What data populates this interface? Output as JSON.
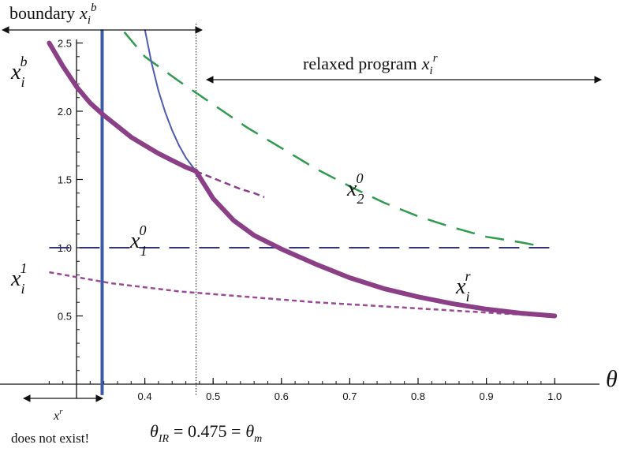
{
  "chart_data": {
    "type": "line",
    "xlabel": "θ",
    "x_ticks": [
      "0.4",
      "0.5",
      "0.6",
      "0.7",
      "0.8",
      "0.9",
      "1.0"
    ],
    "y_ticks": [
      "0.5",
      "1.0",
      "1.5",
      "2.0",
      "2.5"
    ],
    "xlim": [
      0.26,
      1.02
    ],
    "ylim": [
      0,
      2.6
    ],
    "grid": false,
    "colors": {
      "x_b_and_x_r": "#8b3f86",
      "x_1_1": "#9a4a95",
      "x_1_0": "#2e2f8f",
      "x_2_0": "#2e9a4e",
      "steep_blue": "#4d5bb0",
      "vertical_blue": "#3a5ba8"
    },
    "series": [
      {
        "label_parts": {
          "base": "x",
          "sub": "i",
          "sup": "b"
        },
        "style": "thick solid",
        "x": [
          0.26,
          0.28,
          0.3,
          0.32,
          0.34,
          0.36,
          0.38,
          0.4,
          0.42,
          0.44,
          0.46,
          0.475
        ],
        "y": [
          2.5,
          2.33,
          2.18,
          2.06,
          1.97,
          1.89,
          1.81,
          1.75,
          1.69,
          1.64,
          1.59,
          1.56
        ]
      },
      {
        "style": "thin dashed continuation",
        "x": [
          0.475,
          0.5,
          0.52,
          0.54,
          0.56,
          0.575
        ],
        "y": [
          1.56,
          1.51,
          1.47,
          1.43,
          1.4,
          1.37
        ]
      },
      {
        "label_parts": {
          "base": "x",
          "sub": "i",
          "sup": "r"
        },
        "style": "thick solid",
        "x": [
          0.475,
          0.5,
          0.53,
          0.56,
          0.6,
          0.65,
          0.7,
          0.75,
          0.8,
          0.85,
          0.9,
          0.95,
          1.0
        ],
        "y": [
          1.56,
          1.36,
          1.2,
          1.09,
          0.99,
          0.88,
          0.78,
          0.7,
          0.64,
          0.59,
          0.55,
          0.52,
          0.5
        ]
      },
      {
        "label_parts": {
          "base": "x",
          "sub": "i",
          "sup": "1"
        },
        "style": "short dashed",
        "x": [
          0.26,
          0.35,
          0.45,
          0.55,
          0.65,
          0.75,
          0.85,
          0.95,
          1.0
        ],
        "y": [
          0.82,
          0.74,
          0.68,
          0.64,
          0.6,
          0.57,
          0.54,
          0.51,
          0.49
        ]
      },
      {
        "label_parts": {
          "base": "x",
          "sub": "1",
          "sup": "0"
        },
        "style": "long dashed",
        "x": [
          0.26,
          1.0
        ],
        "y": [
          1.0,
          1.0
        ]
      },
      {
        "label_parts": {
          "base": "x",
          "sub": "2",
          "sup": "0"
        },
        "style": "long dashed",
        "x": [
          0.37,
          0.4,
          0.45,
          0.5,
          0.55,
          0.6,
          0.65,
          0.7,
          0.75,
          0.8,
          0.85,
          0.9,
          0.95,
          0.97
        ],
        "y": [
          2.58,
          2.4,
          2.22,
          2.05,
          1.88,
          1.73,
          1.58,
          1.45,
          1.33,
          1.23,
          1.15,
          1.08,
          1.04,
          1.02
        ]
      },
      {
        "style": "thin solid steep",
        "x": [
          0.4,
          0.41,
          0.42,
          0.43,
          0.44,
          0.45,
          0.46,
          0.475,
          0.5,
          0.53,
          0.56,
          0.6
        ],
        "y": [
          2.6,
          2.35,
          2.15,
          1.99,
          1.86,
          1.75,
          1.66,
          1.56,
          1.36,
          1.2,
          1.09,
          0.99
        ]
      }
    ],
    "vertical_lines": [
      {
        "x": 0.3375,
        "style": "thick solid"
      },
      {
        "x": 0.475,
        "style": "thin dotted"
      }
    ],
    "annotations": {
      "boundary_text": "boundary",
      "relaxed_text": "relaxed program",
      "theta_eq_left": "= 0.475 =",
      "theta_sub_ir": "IR",
      "theta_sub_m": "m",
      "does_not_exist": "does not exist!",
      "xr_label": "x",
      "xr_sup": "r"
    }
  }
}
